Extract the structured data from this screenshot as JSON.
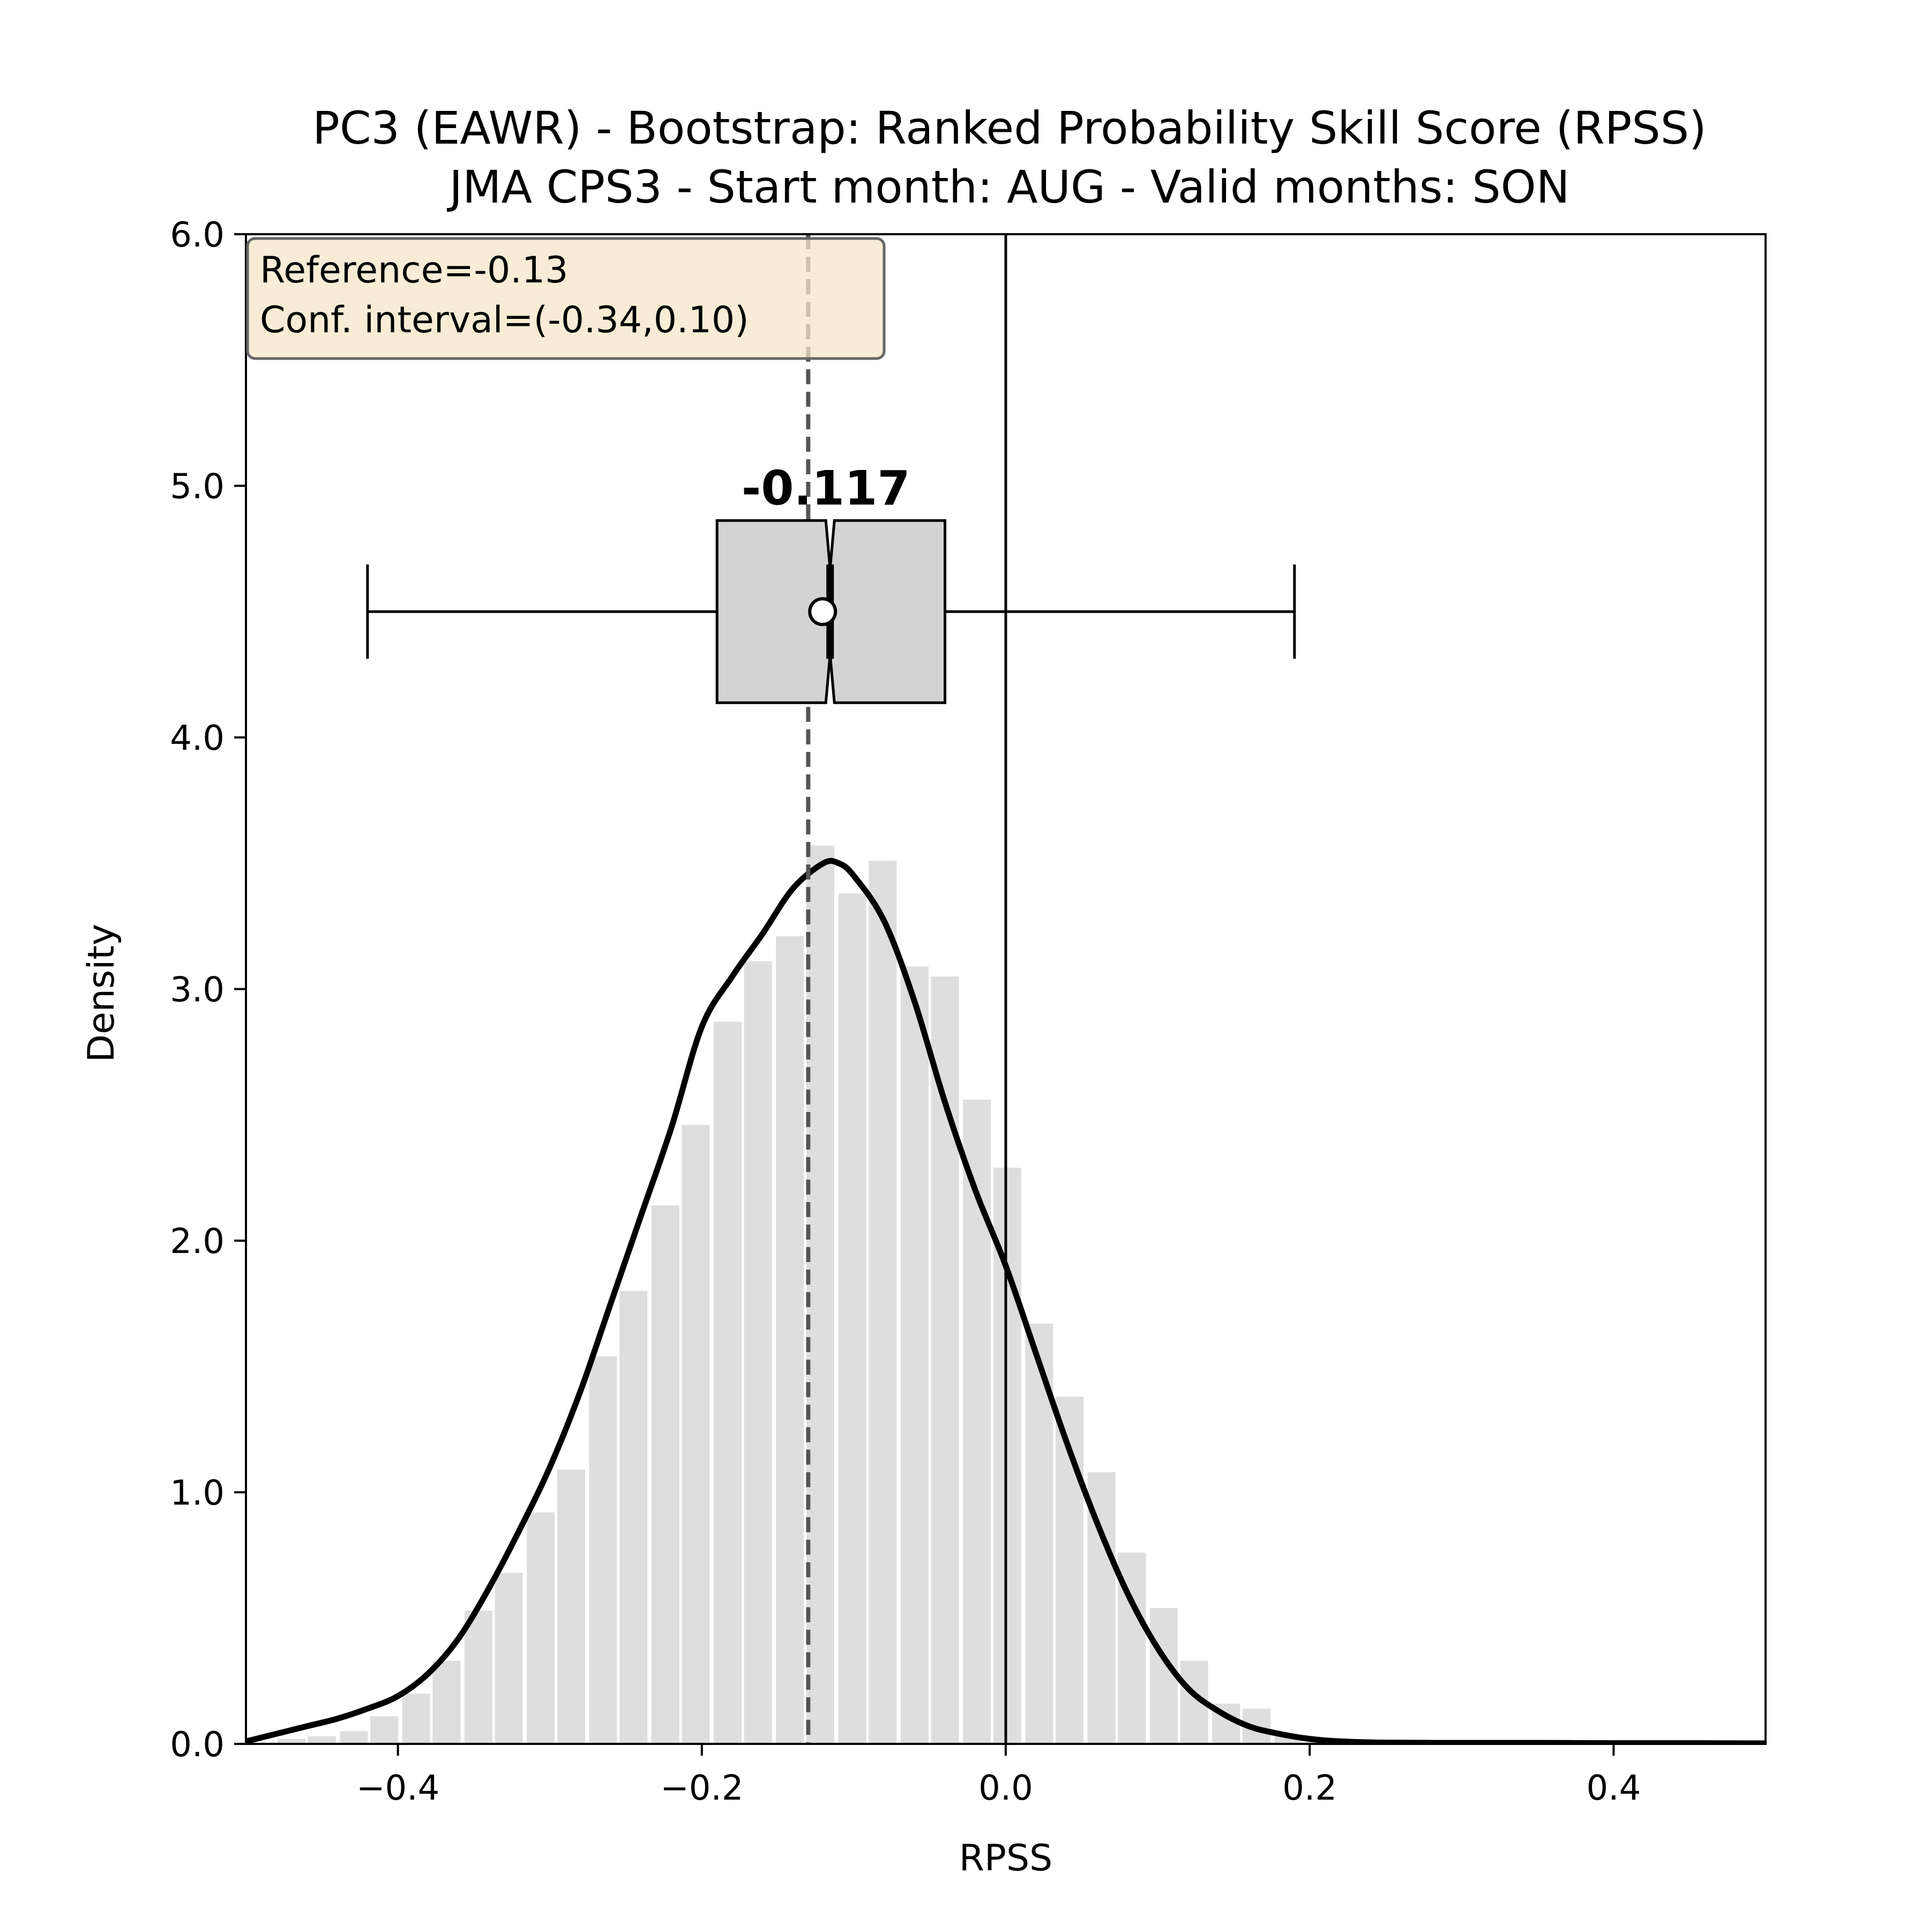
{
  "chart_data": {
    "type": "histogram",
    "title": "PC3 (EAWR) - Bootstrap: Ranked Probability Skill Score (RPSS)",
    "subtitle": "JMA CPS3 - Start month: AUG - Valid months: SON",
    "xlabel": "RPSS",
    "ylabel": "Density",
    "xlim": [
      -0.5,
      0.5
    ],
    "ylim": [
      0.0,
      6.0
    ],
    "xticks": [
      -0.4,
      -0.2,
      0.0,
      0.2,
      0.4
    ],
    "xtick_labels": [
      "−0.4",
      "−0.2",
      "0.0",
      "0.2",
      "0.4"
    ],
    "yticks": [
      0.0,
      1.0,
      2.0,
      3.0,
      4.0,
      5.0,
      6.0
    ],
    "ytick_labels": [
      "0.0",
      "1.0",
      "2.0",
      "3.0",
      "4.0",
      "5.0",
      "6.0"
    ],
    "histogram": {
      "bin_width": 0.0205,
      "bins": [
        {
          "x": -0.47,
          "density": 0.02
        },
        {
          "x": -0.45,
          "density": 0.03
        },
        {
          "x": -0.429,
          "density": 0.05
        },
        {
          "x": -0.409,
          "density": 0.11
        },
        {
          "x": -0.388,
          "density": 0.2
        },
        {
          "x": -0.368,
          "density": 0.33
        },
        {
          "x": -0.347,
          "density": 0.53
        },
        {
          "x": -0.327,
          "density": 0.68
        },
        {
          "x": -0.306,
          "density": 0.92
        },
        {
          "x": -0.286,
          "density": 1.09
        },
        {
          "x": -0.265,
          "density": 1.54
        },
        {
          "x": -0.245,
          "density": 1.8
        },
        {
          "x": -0.224,
          "density": 2.14
        },
        {
          "x": -0.204,
          "density": 2.46
        },
        {
          "x": -0.183,
          "density": 2.87
        },
        {
          "x": -0.163,
          "density": 3.11
        },
        {
          "x": -0.142,
          "density": 3.21
        },
        {
          "x": -0.122,
          "density": 3.57
        },
        {
          "x": -0.101,
          "density": 3.38
        },
        {
          "x": -0.081,
          "density": 3.51
        },
        {
          "x": -0.06,
          "density": 3.09
        },
        {
          "x": -0.04,
          "density": 3.05
        },
        {
          "x": -0.019,
          "density": 2.56
        },
        {
          "x": 0.001,
          "density": 2.29
        },
        {
          "x": 0.022,
          "density": 1.67
        },
        {
          "x": 0.042,
          "density": 1.38
        },
        {
          "x": 0.063,
          "density": 1.08
        },
        {
          "x": 0.083,
          "density": 0.76
        },
        {
          "x": 0.104,
          "density": 0.54
        },
        {
          "x": 0.124,
          "density": 0.33
        },
        {
          "x": 0.145,
          "density": 0.16
        },
        {
          "x": 0.165,
          "density": 0.14
        },
        {
          "x": 0.186,
          "density": 0.03
        },
        {
          "x": 0.206,
          "density": 0.01
        }
      ],
      "color": "#dedede"
    },
    "kde": {
      "x": [
        -0.5,
        -0.48,
        -0.46,
        -0.44,
        -0.42,
        -0.4,
        -0.38,
        -0.36,
        -0.34,
        -0.32,
        -0.3,
        -0.28,
        -0.26,
        -0.24,
        -0.22,
        -0.2,
        -0.18,
        -0.16,
        -0.14,
        -0.12,
        -0.11,
        -0.1,
        -0.08,
        -0.06,
        -0.04,
        -0.02,
        0.0,
        0.02,
        0.04,
        0.06,
        0.08,
        0.1,
        0.12,
        0.14,
        0.16,
        0.18,
        0.2,
        0.22,
        0.25,
        0.3,
        0.35,
        0.4,
        0.45,
        0.5
      ],
      "density": [
        0.01,
        0.04,
        0.07,
        0.1,
        0.14,
        0.19,
        0.28,
        0.42,
        0.62,
        0.85,
        1.1,
        1.4,
        1.75,
        2.1,
        2.45,
        2.85,
        3.05,
        3.22,
        3.4,
        3.5,
        3.5,
        3.45,
        3.27,
        2.95,
        2.55,
        2.2,
        1.9,
        1.55,
        1.2,
        0.88,
        0.6,
        0.38,
        0.22,
        0.13,
        0.07,
        0.04,
        0.02,
        0.01,
        0.005,
        0.004,
        0.004,
        0.003,
        0.003,
        0.002
      ]
    },
    "reference_line": {
      "x": -0.13,
      "style": "dashed",
      "color": "#555555"
    },
    "zero_line": {
      "x": 0.0,
      "color": "#000000"
    },
    "boxplot": {
      "y": 4.5,
      "whisker_low": -0.42,
      "q1": -0.19,
      "median": -0.117,
      "q3": -0.04,
      "whisker_high": 0.19,
      "mean": -0.117,
      "notch_low": -0.1145,
      "notch_high": -0.1135,
      "box_color": "#d3d3d3",
      "median_label": "-0.117"
    },
    "info_box": {
      "line1": "Reference=-0.13",
      "line2": "Conf. interval=(-0.34,0.10)",
      "background": "#f5e6c8",
      "placement": "top-left"
    },
    "grid": false,
    "legend": null
  }
}
